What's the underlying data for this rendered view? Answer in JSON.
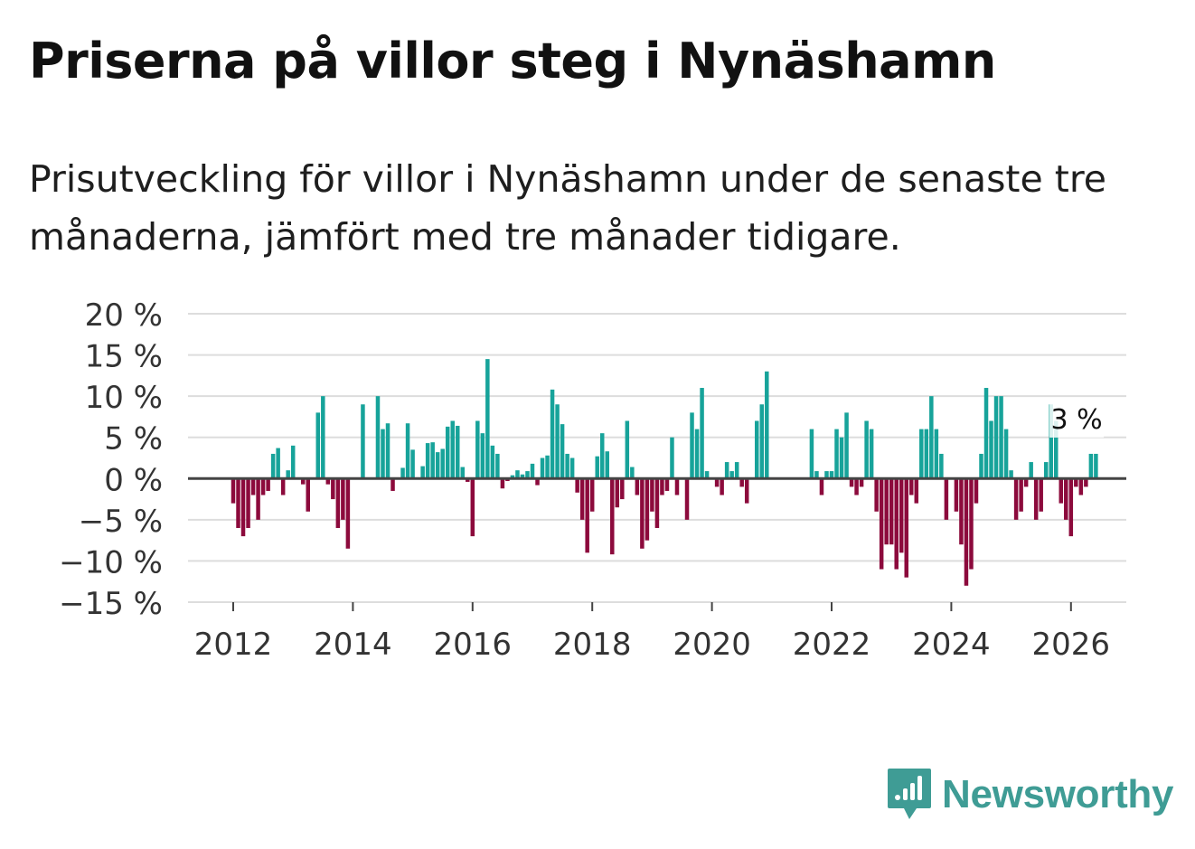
{
  "title": "Priserna på villor steg i Nynäshamn",
  "subtitle": "Prisutveckling för villor i Nynäshamn under de senaste tre månaderna, jämfört med tre månader tidigare.",
  "brand": {
    "name": "Newsworthy",
    "icon": "newsworthy-logo-icon",
    "color": "#3f9c95"
  },
  "colors": {
    "positive": "#17a39a",
    "negative": "#8c0a3c",
    "zero_line": "#444444",
    "grid": "#dddddd"
  },
  "chart_data": {
    "type": "bar",
    "title": "Priserna på villor steg i Nynäshamn",
    "xlabel": "",
    "ylabel": "",
    "ylim": [
      -15,
      20
    ],
    "y_ticks": [
      20,
      15,
      10,
      5,
      0,
      -5,
      -10,
      -15
    ],
    "y_tick_labels": [
      "20 %",
      "15 %",
      "10 %",
      "5 %",
      "0 %",
      "−5 %",
      "−10 %",
      "−15 %"
    ],
    "x_ticks": [
      2012,
      2014,
      2016,
      2018,
      2020,
      2022,
      2024,
      2026
    ],
    "x_tick_labels": [
      "2012",
      "2014",
      "2016",
      "2018",
      "2020",
      "2022",
      "2024",
      "2026"
    ],
    "x_start": 2012.0,
    "x_step": 0.0833333,
    "annotation": {
      "text": "3 %",
      "x": 2026.125,
      "y": 3
    },
    "values": [
      -3,
      -6,
      -7,
      -6,
      -2,
      -5,
      -2,
      -1.5,
      3,
      3.7,
      -2,
      1,
      4,
      0,
      -0.7,
      -4,
      0,
      8,
      10,
      -0.7,
      -2.5,
      -6,
      -5,
      -8.5,
      0,
      0,
      9,
      0,
      0,
      10,
      6,
      6.7,
      -1.5,
      0,
      1.3,
      6.7,
      3.5,
      0,
      1.5,
      4.3,
      4.4,
      3.2,
      3.6,
      6.3,
      7,
      6.4,
      1.4,
      -0.4,
      -7,
      7,
      5.5,
      14.5,
      4,
      3,
      -1.2,
      -0.3,
      0.4,
      1,
      0.5,
      0.9,
      1.8,
      -0.8,
      2.5,
      2.8,
      10.8,
      9,
      6.6,
      3,
      2.5,
      -1.7,
      -5,
      -9,
      -4,
      2.7,
      5.5,
      3.3,
      -9.2,
      -3.5,
      -2.5,
      7,
      1.4,
      -2,
      -8.5,
      -7.5,
      -4,
      -6,
      -2,
      -1.5,
      5,
      -2,
      0,
      -5,
      8,
      6,
      11,
      0.9,
      0,
      -1,
      -2,
      2,
      0.9,
      2,
      -1,
      -3,
      0,
      7,
      9,
      13,
      0,
      0,
      0,
      0,
      0,
      0,
      0,
      0,
      6,
      0.9,
      -2,
      0.9,
      0.9,
      6,
      5,
      8,
      -1,
      -2,
      -1,
      7,
      6,
      -4,
      -11,
      -8,
      -8,
      -11,
      -9,
      -12,
      -2,
      -3,
      6,
      6,
      10,
      6,
      3,
      -5,
      0,
      -4,
      -8,
      -13,
      -11,
      -3,
      3,
      11,
      7,
      10,
      10,
      6,
      1,
      -5,
      -4,
      -1,
      2,
      -5,
      -4,
      2,
      9,
      7,
      -3,
      -5,
      -7,
      -1,
      -2,
      -1,
      3,
      3
    ]
  }
}
